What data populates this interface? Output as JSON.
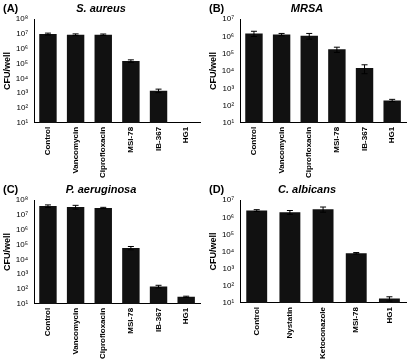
{
  "chart_data": [
    {
      "type": "bar",
      "title": "S. aureus",
      "annotations": [
        "(A)"
      ],
      "y_label": "CFU/well",
      "categories": [
        "Control",
        "Vancomycin",
        "Ciprofloxacin",
        "MSI-78",
        "IB-367",
        "HG1"
      ],
      "values": [
        10000000,
        9000000,
        9000000,
        150000,
        1500,
        null
      ],
      "errors": [
        1500000,
        1200000,
        1000000,
        30000,
        400,
        null
      ],
      "color": "#111111",
      "log": "y",
      "grid": false,
      "ylim": [
        10,
        100000000
      ],
      "yticks": [
        {
          "value": 10,
          "label": "10¹"
        },
        {
          "value": 100,
          "label": "10²"
        },
        {
          "value": 1000,
          "label": "10³"
        },
        {
          "value": 10000,
          "label": "10⁴"
        },
        {
          "value": 100000,
          "label": "10⁵"
        },
        {
          "value": 1000000,
          "label": "10⁶"
        },
        {
          "value": 10000000,
          "label": "10⁷"
        },
        {
          "value": 100000000,
          "label": "10⁸"
        }
      ]
    },
    {
      "type": "bar",
      "title": "MRSA",
      "annotations": [
        "(B)"
      ],
      "y_label": "CFU/well",
      "categories": [
        "Control",
        "Vancomycin",
        "Ciprofloxacin",
        "MSI-78",
        "IB-367",
        "HG1"
      ],
      "values": [
        1500000,
        1300000,
        1100000,
        180000,
        15000,
        200
      ],
      "errors": [
        500000,
        200000,
        400000,
        60000,
        8000,
        30
      ],
      "color": "#111111",
      "log": "y",
      "grid": false,
      "ylim": [
        10,
        10000000
      ],
      "yticks": [
        {
          "value": 10,
          "label": "10¹"
        },
        {
          "value": 100,
          "label": "10²"
        },
        {
          "value": 1000,
          "label": "10³"
        },
        {
          "value": 10000,
          "label": "10⁴"
        },
        {
          "value": 100000,
          "label": "10⁵"
        },
        {
          "value": 1000000,
          "label": "10⁶"
        },
        {
          "value": 10000000,
          "label": "10⁷"
        }
      ]
    },
    {
      "type": "bar",
      "title": "P. aeruginosa",
      "annotations": [
        "(C)"
      ],
      "y_label": "CFU/well",
      "categories": [
        "Control",
        "Vancomycin",
        "Ciprofloxacin",
        "MSI-78",
        "IB-367",
        "HG1"
      ],
      "values": [
        40000000,
        35000000,
        30000000,
        60000,
        150,
        30
      ],
      "errors": [
        8000000,
        10000000,
        3000000,
        15000,
        30,
        3
      ],
      "color": "#111111",
      "log": "y",
      "grid": false,
      "ylim": [
        10,
        100000000
      ],
      "yticks": [
        {
          "value": 10,
          "label": "10¹"
        },
        {
          "value": 100,
          "label": "10²"
        },
        {
          "value": 1000,
          "label": "10³"
        },
        {
          "value": 10000,
          "label": "10⁴"
        },
        {
          "value": 100000,
          "label": "10⁵"
        },
        {
          "value": 1000000,
          "label": "10⁶"
        },
        {
          "value": 10000000,
          "label": "10⁷"
        },
        {
          "value": 100000000,
          "label": "10⁸"
        }
      ]
    },
    {
      "type": "bar",
      "title": "C. albicans",
      "annotations": [
        "(D)"
      ],
      "y_label": "CFU/well",
      "categories": [
        "Control",
        "Nystatin",
        "Ketoconazole",
        "MSI-78",
        "HG1"
      ],
      "values": [
        2500000,
        2000000,
        3000000,
        8000,
        18
      ],
      "errors": [
        300000,
        500000,
        1000000,
        800,
        5
      ],
      "color": "#111111",
      "log": "y",
      "grid": false,
      "ylim": [
        10,
        10000000
      ],
      "yticks": [
        {
          "value": 10,
          "label": "10¹"
        },
        {
          "value": 100,
          "label": "10²"
        },
        {
          "value": 1000,
          "label": "10³"
        },
        {
          "value": 10000,
          "label": "10⁴"
        },
        {
          "value": 100000,
          "label": "10⁵"
        },
        {
          "value": 1000000,
          "label": "10⁶"
        },
        {
          "value": 10000000,
          "label": "10⁷"
        }
      ]
    }
  ]
}
